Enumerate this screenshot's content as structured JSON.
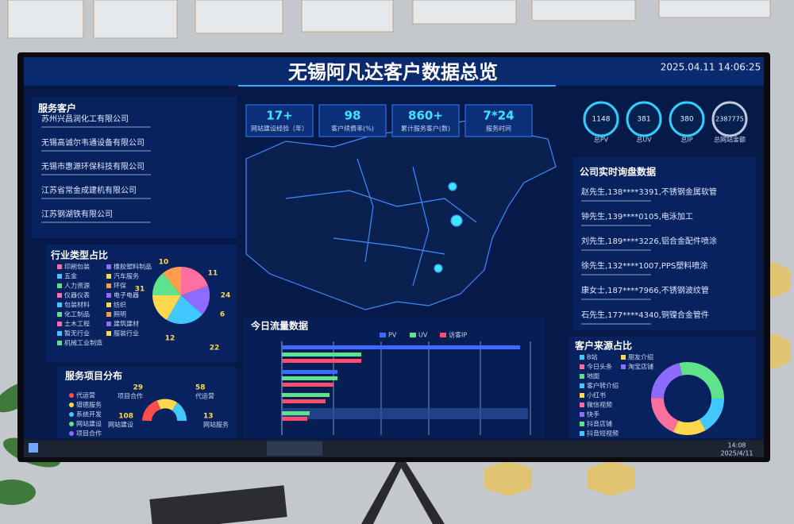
{
  "header": {
    "title": "无锡阿凡达客户数据总览",
    "datetime": "2025.04.11 14:06:25"
  },
  "stats": [
    {
      "value": "17+",
      "label": "网站建设经验（年）"
    },
    {
      "value": "98",
      "label": "客户续费率(%)"
    },
    {
      "value": "860+",
      "label": "累计服务客户(数)"
    },
    {
      "value": "7*24",
      "label": "服务时间"
    }
  ],
  "totals": [
    {
      "value": "1148",
      "label": "总PV"
    },
    {
      "value": "381",
      "label": "总UV"
    },
    {
      "value": "380",
      "label": "总IP"
    },
    {
      "value": "2387775",
      "label": "总网站金额"
    }
  ],
  "clients": {
    "title": "服务客户",
    "items": [
      "苏州兴昌润化工有限公司",
      "无锡高诚尔韦通设备有限公司",
      "无锡市惠源环保科技有限公司",
      "江苏省常金成建机有限公司",
      "江苏钢湖铁有限公司"
    ]
  },
  "industry": {
    "title": "行业类型占比",
    "legend": [
      "印刷包装",
      "橡胶塑料制品",
      "五金",
      "汽车服务",
      "人力资源",
      "环保",
      "仪器仪表",
      "电子电器",
      "包装材料",
      "纺织",
      "化工制品",
      "照明",
      "土木工程",
      "建筑建材",
      "暂无行业",
      "服装行业",
      "机械工业制造"
    ],
    "numbers": [
      "10",
      "11",
      "31",
      "24",
      "6",
      "12",
      "22"
    ]
  },
  "services": {
    "title": "服务项目分布",
    "legend": [
      "代运营",
      "猎德服务",
      "系统开发",
      "网站建设",
      "项目合作"
    ],
    "labels": [
      {
        "value": "29",
        "name": "项目合作"
      },
      {
        "value": "58",
        "name": "代运营"
      },
      {
        "value": "108",
        "name": "网站建设"
      },
      {
        "value": "13",
        "name": "网站服务"
      }
    ]
  },
  "traffic": {
    "title": "今日流量数据",
    "legend": [
      "PV",
      "UV",
      "访客IP"
    ]
  },
  "inquiries": {
    "title": "公司实时询盘数据",
    "items": [
      "赵先生,138****3391,不锈钢金属软管",
      "钟先生,139****0105,电泳加工",
      "刘先生,189****3226,铝合金配件喷涂",
      "徐先生,132****1007,PPS塑料喷涂",
      "康女士,187****7966,不锈钢波纹管",
      "石先生,177****4340,铜镍合金管件"
    ]
  },
  "sources": {
    "title": "客户来源占比",
    "legend": [
      "B站",
      "朋友介绍",
      "今日头条",
      "淘宝店铺",
      "地图",
      "客户转介绍",
      "小红书",
      "微信视频",
      "快手",
      "抖音店铺",
      "抖音短视频"
    ]
  },
  "taskbar": {
    "time": "14:08",
    "date": "2025/4/11"
  }
}
